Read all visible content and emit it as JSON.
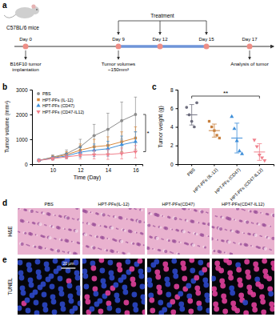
{
  "panel_labels": [
    "a",
    "b",
    "c",
    "d",
    "e"
  ],
  "schematic": {
    "subject": "C57BL/6 mice",
    "timeline": [
      {
        "value": 0,
        "label": "Day 0"
      },
      {
        "value": 9,
        "label": "Day 9"
      },
      {
        "value": 12,
        "label": "Day 12"
      },
      {
        "value": 15,
        "label": "Day 15"
      },
      {
        "value": 17,
        "label": "Day 17"
      }
    ],
    "treatment_label": "Treatment",
    "treatment": [
      9,
      12,
      15
    ],
    "events": [
      {
        "day": 0,
        "lines": [
          "B16F10 tumor",
          "implantation"
        ]
      },
      {
        "day": 9,
        "lines": [
          "Tumor volumes",
          "~150mm³"
        ]
      },
      {
        "day": 17,
        "lines": [
          "Analysis of tumor"
        ]
      }
    ]
  },
  "chart_data": [
    {
      "type": "line",
      "x_label": "Time (Day)",
      "y_label": "Tumor volume (mm³)",
      "x": [
        9,
        10,
        11,
        12,
        13,
        14,
        15,
        16
      ],
      "xlim": [
        8.5,
        16.5
      ],
      "xticks": [
        10,
        12,
        14,
        16
      ],
      "ylim": [
        0,
        3000
      ],
      "yticks": [
        0,
        1000,
        2000,
        3000
      ],
      "legend": "upper left",
      "annotations": [
        "*"
      ],
      "series": [
        {
          "name": "PBS",
          "color": "#8c8c8c",
          "marker": "circle",
          "values": [
            150,
            280,
            420,
            700,
            1150,
            1400,
            1750,
            2000
          ],
          "errors": [
            40,
            90,
            150,
            300,
            450,
            650,
            750,
            700
          ]
        },
        {
          "name": "HPT-PFs (IL-12)",
          "color": "#d98a3d",
          "marker": "square",
          "values": [
            150,
            260,
            380,
            560,
            700,
            750,
            900,
            1050
          ],
          "errors": [
            40,
            80,
            120,
            250,
            300,
            350,
            400,
            450
          ]
        },
        {
          "name": "HPT-PFs (CD47)",
          "color": "#3f8fd9",
          "marker": "triangle",
          "values": [
            150,
            240,
            330,
            480,
            560,
            620,
            780,
            900
          ],
          "errors": [
            40,
            70,
            100,
            200,
            250,
            300,
            350,
            400
          ]
        },
        {
          "name": "HPT-PFs (CD47-IL12)",
          "color": "#f0808c",
          "marker": "triangle-down",
          "values": [
            150,
            220,
            290,
            360,
            380,
            390,
            430,
            500
          ],
          "errors": [
            40,
            60,
            80,
            150,
            170,
            200,
            220,
            250
          ]
        }
      ]
    },
    {
      "type": "dot",
      "y_label": "Tumor weight (g)",
      "categories": [
        "PBS",
        "HPT-PFs (IL-12)",
        "HPT-PFs (CD47)",
        "HPT-PFs (CD47-IL12)"
      ],
      "values": [
        [
          6.1,
          5.3,
          4.6,
          4.0,
          6.6
        ],
        [
          4.6,
          4.0,
          3.6,
          3.1,
          2.8
        ],
        [
          5.1,
          3.8,
          2.5,
          1.4,
          1.1
        ],
        [
          2.6,
          1.9,
          1.0,
          0.7,
          0.4
        ]
      ],
      "means": [
        5.3,
        3.6,
        2.8,
        1.3
      ],
      "errors": [
        1.1,
        0.7,
        1.6,
        0.9
      ],
      "colors": [
        "#6e6e7e",
        "#c8803e",
        "#3f8fd9",
        "#f0808c"
      ],
      "markers": [
        "circle",
        "square",
        "triangle",
        "triangle-down"
      ],
      "ylim": [
        0,
        8
      ],
      "yticks": [
        0,
        2,
        4,
        6,
        8
      ],
      "annotations": [
        "**"
      ]
    }
  ],
  "images": {
    "rows": [
      "H&E",
      "TUNEL"
    ],
    "columns": [
      "PBS",
      "HPT-PFs(IL-12)",
      "HPT-PFs(CD47)",
      "HPT-PFs(CD47-IL12)"
    ],
    "scale_bar": "20 μm"
  }
}
